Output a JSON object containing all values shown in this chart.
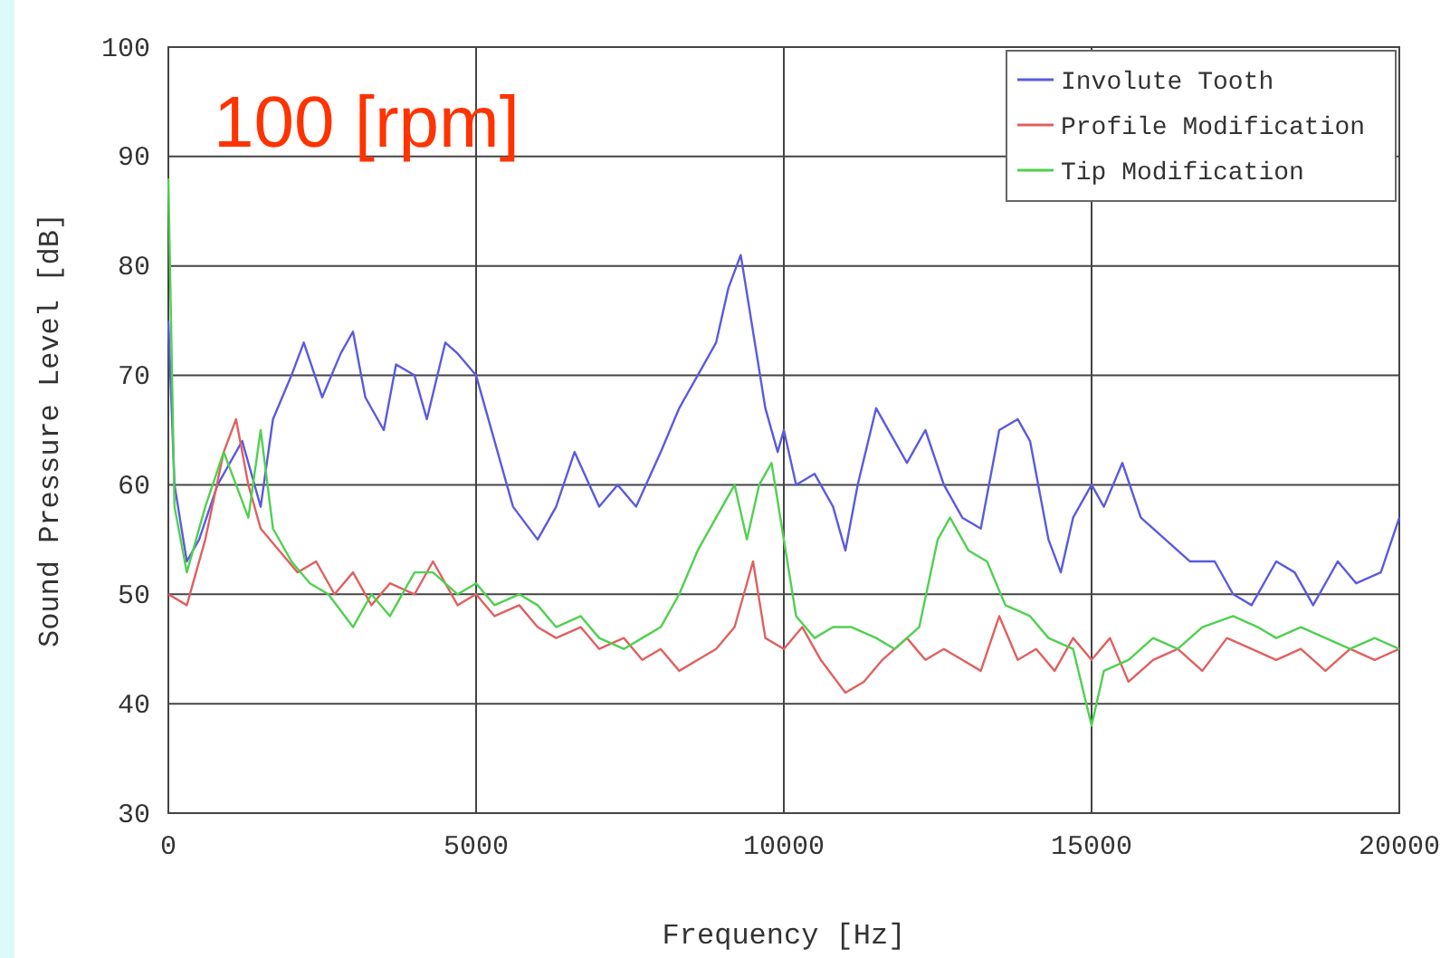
{
  "chart_data": {
    "type": "line",
    "title": "100 [rpm]",
    "xlabel": "Frequency [Hz]",
    "ylabel": "Sound Pressure Level [dB]",
    "xlim": [
      0,
      20000
    ],
    "xticks": [
      0,
      5000,
      10000,
      15000,
      20000
    ],
    "ylim": [
      30,
      100
    ],
    "yticks": [
      30,
      40,
      50,
      60,
      70,
      80,
      90,
      100
    ],
    "grid": true,
    "legend": "top right",
    "line_style": "solid",
    "series": [
      {
        "name": "Involute Tooth",
        "color": "#5a5ae0",
        "x": [
          0,
          100,
          300,
          500,
          800,
          1000,
          1200,
          1500,
          1700,
          2000,
          2200,
          2500,
          2800,
          3000,
          3200,
          3500,
          3700,
          4000,
          4200,
          4500,
          4700,
          5000,
          5300,
          5600,
          6000,
          6300,
          6600,
          7000,
          7300,
          7600,
          8000,
          8300,
          8600,
          8900,
          9100,
          9300,
          9500,
          9700,
          9900,
          10000,
          10200,
          10500,
          10800,
          11000,
          11200,
          11500,
          11800,
          12000,
          12300,
          12600,
          12900,
          13200,
          13500,
          13800,
          14000,
          14300,
          14500,
          14700,
          15000,
          15200,
          15500,
          15800,
          16200,
          16600,
          17000,
          17300,
          17600,
          18000,
          18300,
          18600,
          19000,
          19300,
          19700,
          20000
        ],
        "values": [
          75,
          60,
          53,
          55,
          60,
          62,
          64,
          58,
          66,
          70,
          73,
          68,
          72,
          74,
          68,
          65,
          71,
          70,
          66,
          73,
          72,
          70,
          64,
          58,
          55,
          58,
          63,
          58,
          60,
          58,
          63,
          67,
          70,
          73,
          78,
          81,
          74,
          67,
          63,
          65,
          60,
          61,
          58,
          54,
          60,
          67,
          64,
          62,
          65,
          60,
          57,
          56,
          65,
          66,
          64,
          55,
          52,
          57,
          60,
          58,
          62,
          57,
          55,
          53,
          53,
          50,
          49,
          53,
          52,
          49,
          53,
          51,
          52,
          57
        ]
      },
      {
        "name": "Profile Modification",
        "color": "#e06060",
        "x": [
          0,
          300,
          600,
          900,
          1100,
          1300,
          1500,
          1800,
          2100,
          2400,
          2700,
          3000,
          3300,
          3600,
          4000,
          4300,
          4700,
          5000,
          5300,
          5700,
          6000,
          6300,
          6700,
          7000,
          7400,
          7700,
          8000,
          8300,
          8600,
          8900,
          9200,
          9500,
          9700,
          10000,
          10300,
          10600,
          11000,
          11300,
          11600,
          12000,
          12300,
          12600,
          12900,
          13200,
          13500,
          13800,
          14100,
          14400,
          14700,
          15000,
          15300,
          15600,
          16000,
          16400,
          16800,
          17200,
          17600,
          18000,
          18400,
          18800,
          19200,
          19600,
          20000
        ],
        "values": [
          50,
          49,
          55,
          63,
          66,
          60,
          56,
          54,
          52,
          53,
          50,
          52,
          49,
          51,
          50,
          53,
          49,
          50,
          48,
          49,
          47,
          46,
          47,
          45,
          46,
          44,
          45,
          43,
          44,
          45,
          47,
          53,
          46,
          45,
          47,
          44,
          41,
          42,
          44,
          46,
          44,
          45,
          44,
          43,
          48,
          44,
          45,
          43,
          46,
          44,
          46,
          42,
          44,
          45,
          43,
          46,
          45,
          44,
          45,
          43,
          45,
          44,
          45
        ]
      },
      {
        "name": "Tip Modification",
        "color": "#50d050",
        "x": [
          0,
          100,
          300,
          600,
          900,
          1100,
          1300,
          1500,
          1700,
          2000,
          2300,
          2600,
          3000,
          3300,
          3600,
          4000,
          4300,
          4700,
          5000,
          5300,
          5700,
          6000,
          6300,
          6700,
          7000,
          7400,
          7700,
          8000,
          8300,
          8600,
          8900,
          9200,
          9400,
          9600,
          9800,
          10000,
          10200,
          10500,
          10800,
          11100,
          11500,
          11800,
          12200,
          12500,
          12700,
          13000,
          13300,
          13600,
          14000,
          14300,
          14700,
          15000,
          15200,
          15600,
          16000,
          16400,
          16800,
          17300,
          17700,
          18000,
          18400,
          18800,
          19200,
          19600,
          20000
        ],
        "values": [
          88,
          58,
          52,
          58,
          63,
          60,
          57,
          65,
          56,
          53,
          51,
          50,
          47,
          50,
          48,
          52,
          52,
          50,
          51,
          49,
          50,
          49,
          47,
          48,
          46,
          45,
          46,
          47,
          50,
          54,
          57,
          60,
          55,
          60,
          62,
          55,
          48,
          46,
          47,
          47,
          46,
          45,
          47,
          55,
          57,
          54,
          53,
          49,
          48,
          46,
          45,
          38,
          43,
          44,
          46,
          45,
          47,
          48,
          47,
          46,
          47,
          46,
          45,
          46,
          45
        ]
      }
    ]
  }
}
